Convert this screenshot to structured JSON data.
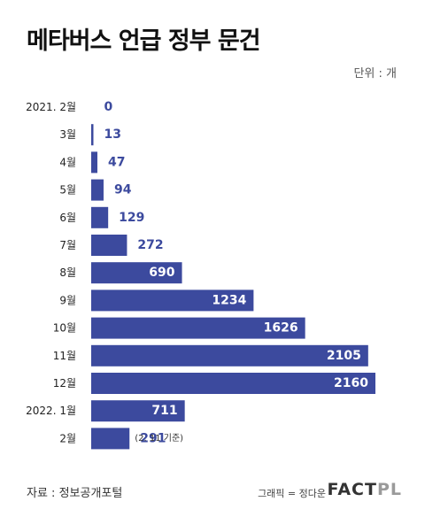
{
  "header": {
    "title": "메타버스 언급 정부 문건",
    "unit": "단위 : 개"
  },
  "footer": {
    "source": "자료 : 정보공개포털",
    "credit": "그래픽 = 정다운",
    "brand_main": "FACT",
    "brand_accent": "PL"
  },
  "colors": {
    "bar": "#3c4a9e",
    "label_dark": "#ffffff",
    "label_light": "#3c4a9e"
  },
  "chart_data": {
    "type": "bar",
    "orientation": "horizontal",
    "title": "메타버스 언급 정부 문건",
    "unit": "단위 : 개",
    "categories": [
      "2021. 2월",
      "3월",
      "4월",
      "5월",
      "6월",
      "7월",
      "8월",
      "9월",
      "10월",
      "11월",
      "12월",
      "2022. 1월",
      "2월"
    ],
    "values": [
      0,
      13,
      47,
      94,
      129,
      272,
      690,
      1234,
      1626,
      2105,
      2160,
      711,
      291
    ],
    "annotations": [
      {
        "category": "2월",
        "text": "(2. 11 기준)"
      }
    ],
    "xlim": [
      0,
      2160
    ],
    "grid": false,
    "legend": "none"
  }
}
